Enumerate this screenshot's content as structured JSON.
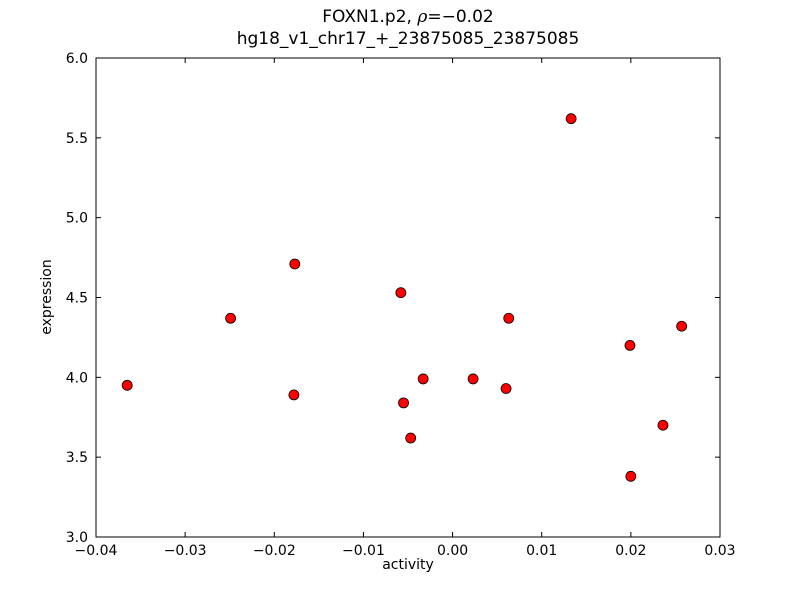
{
  "chart_data": {
    "type": "scatter",
    "title": "FOXN1.p2, ρ=−0.02",
    "title_parts": {
      "prefix": "FOXN1.p2, ",
      "rho": "ρ",
      "suffix": "=−0.02"
    },
    "subtitle": "hg18_v1_chr17_+_23875085_23875085",
    "xlabel": "activity",
    "ylabel": "expression",
    "xlim": [
      -0.04,
      0.03
    ],
    "ylim": [
      3.0,
      6.0
    ],
    "xticks": [
      -0.04,
      -0.03,
      -0.02,
      -0.01,
      0.0,
      0.01,
      0.02,
      0.03
    ],
    "xtick_labels": [
      "−0.04",
      "−0.03",
      "−0.02",
      "−0.01",
      "0.00",
      "0.01",
      "0.02",
      "0.03"
    ],
    "yticks": [
      3.0,
      3.5,
      4.0,
      4.5,
      5.0,
      5.5,
      6.0
    ],
    "ytick_labels": [
      "3.0",
      "3.5",
      "4.0",
      "4.5",
      "5.0",
      "5.5",
      "6.0"
    ],
    "grid": false,
    "legend": null,
    "marker": {
      "shape": "circle",
      "fill": "#ff0000",
      "edge": "#000000",
      "size": 5
    },
    "points": [
      [
        -0.0365,
        3.95
      ],
      [
        -0.0249,
        4.37
      ],
      [
        -0.0177,
        4.71
      ],
      [
        -0.0178,
        3.89
      ],
      [
        -0.0058,
        4.53
      ],
      [
        -0.0055,
        3.84
      ],
      [
        -0.0047,
        3.62
      ],
      [
        -0.0033,
        3.99
      ],
      [
        0.0023,
        3.99
      ],
      [
        0.006,
        3.93
      ],
      [
        0.0063,
        4.37
      ],
      [
        0.0133,
        5.62
      ],
      [
        0.0199,
        4.2
      ],
      [
        0.02,
        3.38
      ],
      [
        0.0236,
        3.7
      ],
      [
        0.0257,
        4.32
      ]
    ]
  }
}
